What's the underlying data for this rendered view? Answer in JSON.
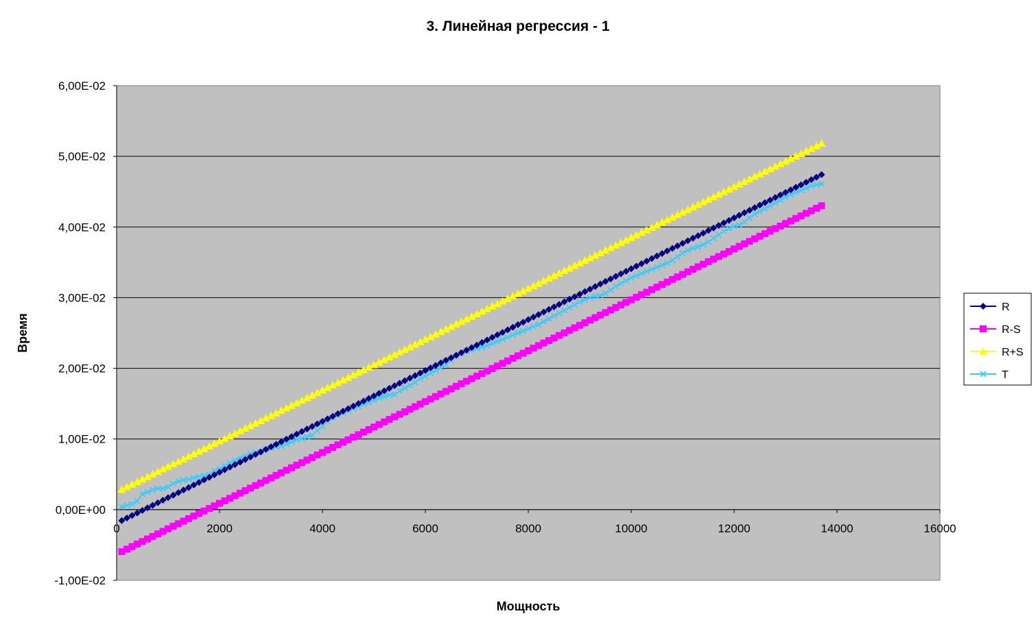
{
  "chart_data": {
    "type": "line",
    "title": "3. Линейная регрессия  - 1",
    "xlabel": "Мощность",
    "ylabel": "Время",
    "xlim": [
      0,
      16000
    ],
    "ylim": [
      -0.01,
      0.06
    ],
    "x_ticks": [
      0,
      2000,
      4000,
      6000,
      8000,
      10000,
      12000,
      14000,
      16000
    ],
    "x_tick_labels": [
      "0",
      "2000",
      "4000",
      "6000",
      "8000",
      "10000",
      "12000",
      "14000",
      "16000"
    ],
    "y_ticks": [
      -0.01,
      0,
      0.01,
      0.02,
      0.03,
      0.04,
      0.05,
      0.06
    ],
    "y_tick_labels": [
      "-1,00E-02",
      "0,00E+00",
      "1,00E-02",
      "2,00E-02",
      "3,00E-02",
      "4,00E-02",
      "5,00E-02",
      "6,00E-02"
    ],
    "grid": "horizontal",
    "legend": "right",
    "x": [
      100,
      200,
      300,
      400,
      500,
      600,
      700,
      800,
      900,
      1000,
      1100,
      1200,
      1300,
      1400,
      1500,
      1600,
      1700,
      1800,
      1900,
      2000,
      2100,
      2200,
      2300,
      2400,
      2500,
      2600,
      2700,
      2800,
      2900,
      3000,
      3100,
      3200,
      3300,
      3400,
      3500,
      3600,
      3700,
      3800,
      3900,
      4000,
      4100,
      4200,
      4300,
      4400,
      4500,
      4600,
      4700,
      4800,
      4900,
      5000,
      5100,
      5200,
      5300,
      5400,
      5500,
      5600,
      5700,
      5800,
      5900,
      6000,
      6100,
      6200,
      6300,
      6400,
      6500,
      6600,
      6700,
      6800,
      6900,
      7000,
      7100,
      7200,
      7300,
      7400,
      7500,
      7600,
      7700,
      7800,
      7900,
      8000,
      8100,
      8200,
      8300,
      8400,
      8500,
      8600,
      8700,
      8800,
      8900,
      9000,
      9100,
      9200,
      9300,
      9400,
      9500,
      9600,
      9700,
      9800,
      9900,
      10000,
      10100,
      10200,
      10300,
      10400,
      10500,
      10600,
      10700,
      10800,
      10900,
      11000,
      11100,
      11200,
      11300,
      11400,
      11500,
      11600,
      11700,
      11800,
      11900,
      12000,
      12100,
      12200,
      12300,
      12400,
      12500,
      12600,
      12700,
      12800,
      12900,
      13000,
      13100,
      13200,
      13300,
      13400,
      13500,
      13600,
      13700
    ],
    "series": [
      {
        "name": "R",
        "color": "#000080",
        "marker": "diamond",
        "values": [
          -0.00155,
          -0.00119,
          -0.00083,
          -0.00047,
          -0.00011,
          0.00025,
          0.00061,
          0.00097,
          0.00133,
          0.00169,
          0.00205,
          0.00241,
          0.00277,
          0.00313,
          0.00349,
          0.00385,
          0.00421,
          0.00457,
          0.00493,
          0.00529,
          0.00565,
          0.00601,
          0.00637,
          0.00673,
          0.00709,
          0.00745,
          0.00781,
          0.00817,
          0.00853,
          0.00889,
          0.00925,
          0.00961,
          0.00997,
          0.01033,
          0.01069,
          0.01105,
          0.01141,
          0.01177,
          0.01213,
          0.01249,
          0.01285,
          0.01321,
          0.01357,
          0.01393,
          0.01429,
          0.01465,
          0.01501,
          0.01537,
          0.01573,
          0.01609,
          0.01645,
          0.01681,
          0.01717,
          0.01753,
          0.01789,
          0.01825,
          0.01861,
          0.01897,
          0.01933,
          0.01969,
          0.02005,
          0.02041,
          0.02077,
          0.02113,
          0.02149,
          0.02185,
          0.02221,
          0.02257,
          0.02293,
          0.02329,
          0.02365,
          0.02401,
          0.02437,
          0.02473,
          0.02509,
          0.02545,
          0.02581,
          0.02617,
          0.02653,
          0.02689,
          0.02725,
          0.02761,
          0.02797,
          0.02833,
          0.02869,
          0.02905,
          0.02941,
          0.02977,
          0.03013,
          0.03049,
          0.03085,
          0.03121,
          0.03157,
          0.03193,
          0.03229,
          0.03265,
          0.03301,
          0.03337,
          0.03373,
          0.03409,
          0.03445,
          0.03481,
          0.03517,
          0.03553,
          0.03589,
          0.03625,
          0.03661,
          0.03697,
          0.03733,
          0.03769,
          0.03805,
          0.03841,
          0.03877,
          0.03913,
          0.03949,
          0.03985,
          0.04021,
          0.04057,
          0.04093,
          0.04129,
          0.04165,
          0.04201,
          0.04237,
          0.04273,
          0.04309,
          0.04345,
          0.04381,
          0.04417,
          0.04453,
          0.04489,
          0.04525,
          0.04561,
          0.04597,
          0.04633,
          0.04669,
          0.04705,
          0.04741
        ]
      },
      {
        "name": "R-S",
        "color": "#FF00FF",
        "marker": "square",
        "values": [
          -0.00595,
          -0.00559,
          -0.00523,
          -0.00487,
          -0.00451,
          -0.00415,
          -0.00379,
          -0.00343,
          -0.00307,
          -0.00271,
          -0.00235,
          -0.00199,
          -0.00163,
          -0.00127,
          -0.00091,
          -0.00055,
          -0.00019,
          0.00017,
          0.00053,
          0.00089,
          0.00125,
          0.00161,
          0.00197,
          0.00233,
          0.00269,
          0.00305,
          0.00341,
          0.00377,
          0.00413,
          0.00449,
          0.00485,
          0.00521,
          0.00557,
          0.00593,
          0.00629,
          0.00665,
          0.00701,
          0.00737,
          0.00773,
          0.00809,
          0.00845,
          0.00881,
          0.00917,
          0.00953,
          0.00989,
          0.01025,
          0.01061,
          0.01097,
          0.01133,
          0.01169,
          0.01205,
          0.01241,
          0.01277,
          0.01313,
          0.01349,
          0.01385,
          0.01421,
          0.01457,
          0.01493,
          0.01529,
          0.01565,
          0.01601,
          0.01637,
          0.01673,
          0.01709,
          0.01745,
          0.01781,
          0.01817,
          0.01853,
          0.01889,
          0.01925,
          0.01961,
          0.01997,
          0.02033,
          0.02069,
          0.02105,
          0.02141,
          0.02177,
          0.02213,
          0.02249,
          0.02285,
          0.02321,
          0.02357,
          0.02393,
          0.02429,
          0.02465,
          0.02501,
          0.02537,
          0.02573,
          0.02609,
          0.02645,
          0.02681,
          0.02717,
          0.02753,
          0.02789,
          0.02825,
          0.02861,
          0.02897,
          0.02933,
          0.02969,
          0.03005,
          0.03041,
          0.03077,
          0.03113,
          0.03149,
          0.03185,
          0.03221,
          0.03257,
          0.03293,
          0.03329,
          0.03365,
          0.03401,
          0.03437,
          0.03473,
          0.03509,
          0.03545,
          0.03581,
          0.03617,
          0.03653,
          0.03689,
          0.03725,
          0.03761,
          0.03797,
          0.03833,
          0.03869,
          0.03905,
          0.03941,
          0.03977,
          0.04013,
          0.04049,
          0.04085,
          0.04121,
          0.04157,
          0.04193,
          0.04229,
          0.04265,
          0.04301
        ]
      },
      {
        "name": "R+S",
        "color": "#FFFF00",
        "marker": "triangle",
        "values": [
          0.00285,
          0.00321,
          0.00357,
          0.00393,
          0.00429,
          0.00465,
          0.00501,
          0.00537,
          0.00573,
          0.00609,
          0.00645,
          0.00681,
          0.00717,
          0.00753,
          0.00789,
          0.00825,
          0.00861,
          0.00897,
          0.00933,
          0.00969,
          0.01005,
          0.01041,
          0.01077,
          0.01113,
          0.01149,
          0.01185,
          0.01221,
          0.01257,
          0.01293,
          0.01329,
          0.01365,
          0.01401,
          0.01437,
          0.01473,
          0.01509,
          0.01545,
          0.01581,
          0.01617,
          0.01653,
          0.01689,
          0.01725,
          0.01761,
          0.01797,
          0.01833,
          0.01869,
          0.01905,
          0.01941,
          0.01977,
          0.02013,
          0.02049,
          0.02085,
          0.02121,
          0.02157,
          0.02193,
          0.02229,
          0.02265,
          0.02301,
          0.02337,
          0.02373,
          0.02409,
          0.02445,
          0.02481,
          0.02517,
          0.02553,
          0.02589,
          0.02625,
          0.02661,
          0.02697,
          0.02733,
          0.02769,
          0.02805,
          0.02841,
          0.02877,
          0.02913,
          0.02949,
          0.02985,
          0.03021,
          0.03057,
          0.03093,
          0.03129,
          0.03165,
          0.03201,
          0.03237,
          0.03273,
          0.03309,
          0.03345,
          0.03381,
          0.03417,
          0.03453,
          0.03489,
          0.03525,
          0.03561,
          0.03597,
          0.03633,
          0.03669,
          0.03705,
          0.03741,
          0.03777,
          0.03813,
          0.03849,
          0.03885,
          0.03921,
          0.03957,
          0.03993,
          0.04029,
          0.04065,
          0.04101,
          0.04137,
          0.04173,
          0.04209,
          0.04245,
          0.04281,
          0.04317,
          0.04353,
          0.04389,
          0.04425,
          0.04461,
          0.04497,
          0.04533,
          0.04569,
          0.04605,
          0.04641,
          0.04677,
          0.04713,
          0.04749,
          0.04785,
          0.04821,
          0.04857,
          0.04893,
          0.04929,
          0.04965,
          0.05001,
          0.05037,
          0.05073,
          0.05109,
          0.05145,
          0.05181
        ]
      },
      {
        "name": "T",
        "color": "#33CCFF",
        "marker": "x",
        "values": [
          0.0004,
          0.0006,
          0.0008,
          0.0012,
          0.0022,
          0.0025,
          0.0028,
          0.003,
          0.003,
          0.0032,
          0.0037,
          0.004,
          0.0042,
          0.0043,
          0.0045,
          0.0047,
          0.0048,
          0.005,
          0.0055,
          0.0058,
          0.0062,
          0.0066,
          0.007,
          0.0073,
          0.0076,
          0.0079,
          0.0081,
          0.0082,
          0.0085,
          0.0087,
          0.0089,
          0.009,
          0.0093,
          0.0096,
          0.0099,
          0.0101,
          0.0103,
          0.0105,
          0.0112,
          0.0118,
          0.0125,
          0.013,
          0.0134,
          0.0137,
          0.014,
          0.0143,
          0.0146,
          0.0149,
          0.0152,
          0.0155,
          0.0158,
          0.016,
          0.0162,
          0.0163,
          0.0168,
          0.0172,
          0.0176,
          0.018,
          0.0185,
          0.0189,
          0.0193,
          0.0197,
          0.0201,
          0.0205,
          0.0211,
          0.0217,
          0.0221,
          0.0224,
          0.0226,
          0.0228,
          0.023,
          0.0232,
          0.0235,
          0.0238,
          0.0241,
          0.0244,
          0.0247,
          0.025,
          0.0253,
          0.0256,
          0.0259,
          0.0262,
          0.0266,
          0.027,
          0.0274,
          0.0278,
          0.0282,
          0.0286,
          0.029,
          0.0294,
          0.0297,
          0.03,
          0.0302,
          0.0303,
          0.0306,
          0.0311,
          0.0316,
          0.032,
          0.0324,
          0.0328,
          0.0331,
          0.0334,
          0.0337,
          0.034,
          0.0343,
          0.0346,
          0.0349,
          0.0353,
          0.0358,
          0.0363,
          0.0367,
          0.037,
          0.0372,
          0.0375,
          0.0379,
          0.0384,
          0.0389,
          0.0394,
          0.0398,
          0.0401,
          0.0403,
          0.0407,
          0.0413,
          0.0418,
          0.0422,
          0.0426,
          0.043,
          0.0434,
          0.0438,
          0.0442,
          0.0446,
          0.0449,
          0.0452,
          0.0455,
          0.0458,
          0.046,
          0.0461
        ]
      }
    ]
  }
}
